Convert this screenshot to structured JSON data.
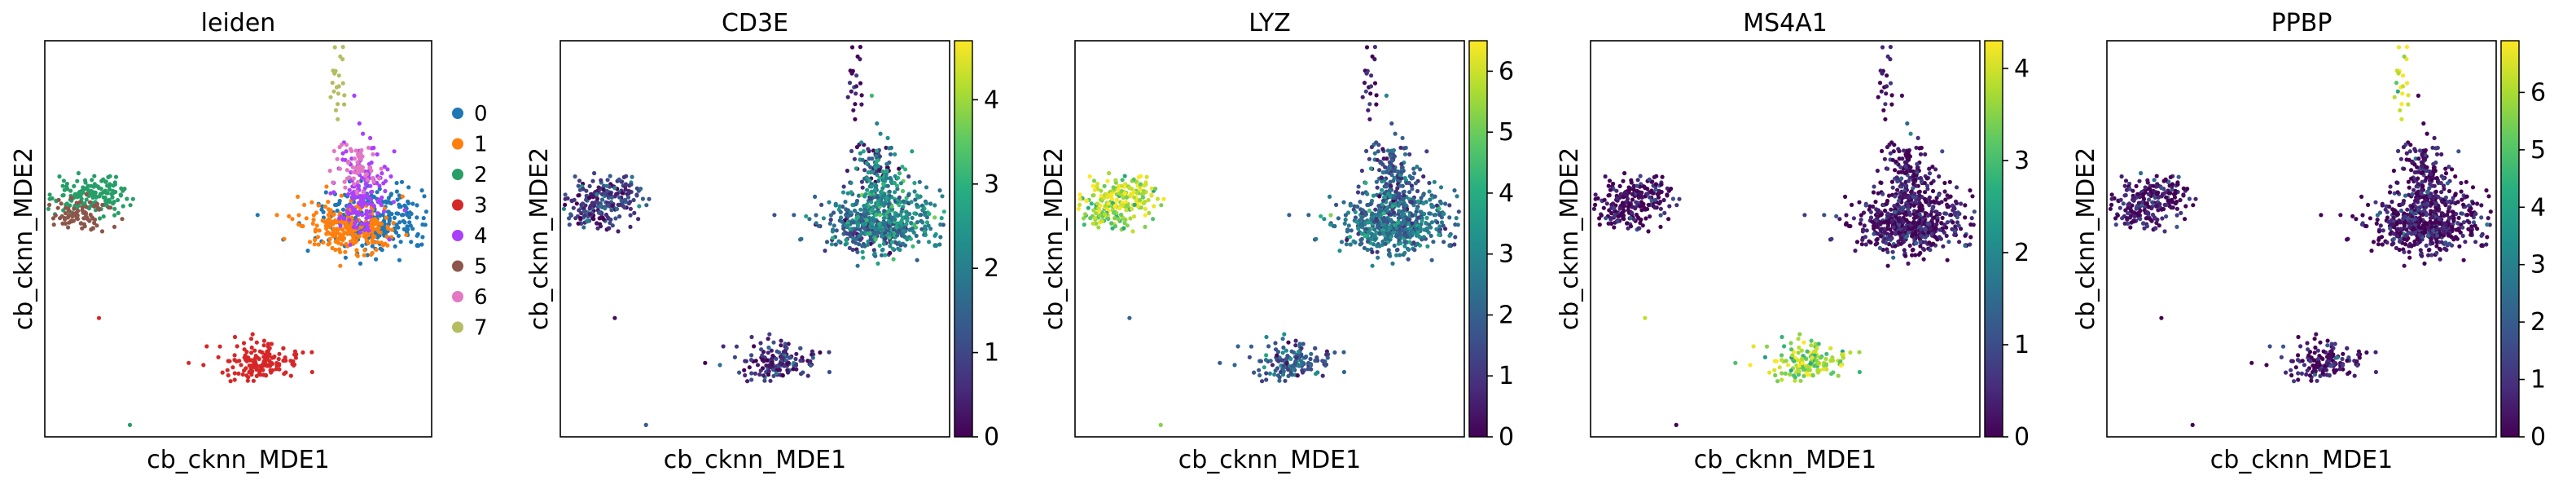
{
  "chart_data": [
    {
      "type": "scatter",
      "title": "leiden",
      "xlabel": "cb_cknn_MDE1",
      "ylabel": "cb_cknn_MDE2",
      "legend": {
        "placement": "right",
        "entries": [
          {
            "label": "0",
            "color": "#1f77b4"
          },
          {
            "label": "1",
            "color": "#ff7f0e"
          },
          {
            "label": "2",
            "color": "#279e68"
          },
          {
            "label": "3",
            "color": "#d62728"
          },
          {
            "label": "4",
            "color": "#aa40fc"
          },
          {
            "label": "5",
            "color": "#8c564b"
          },
          {
            "label": "6",
            "color": "#e377c2"
          },
          {
            "label": "7",
            "color": "#b5bd61"
          }
        ]
      }
    },
    {
      "type": "scatter",
      "title": "CD3E",
      "xlabel": "cb_cknn_MDE1",
      "ylabel": "cb_cknn_MDE2",
      "colorbar": {
        "ticks": [
          "0",
          "1",
          "2",
          "3",
          "4"
        ],
        "range": [
          0,
          4.7
        ],
        "colormap": "viridis"
      }
    },
    {
      "type": "scatter",
      "title": "LYZ",
      "xlabel": "cb_cknn_MDE1",
      "ylabel": "cb_cknn_MDE2",
      "colorbar": {
        "ticks": [
          "0",
          "1",
          "2",
          "3",
          "4",
          "5",
          "6"
        ],
        "range": [
          0,
          6.5
        ],
        "colormap": "viridis"
      }
    },
    {
      "type": "scatter",
      "title": "MS4A1",
      "xlabel": "cb_cknn_MDE1",
      "ylabel": "cb_cknn_MDE2",
      "colorbar": {
        "ticks": [
          "0",
          "1",
          "2",
          "3",
          "4"
        ],
        "range": [
          0,
          4.3
        ],
        "colormap": "viridis"
      }
    },
    {
      "type": "scatter",
      "title": "PPBP",
      "xlabel": "cb_cknn_MDE1",
      "ylabel": "cb_cknn_MDE2",
      "colorbar": {
        "ticks": [
          "0",
          "1",
          "2",
          "3",
          "4",
          "5",
          "6"
        ],
        "range": [
          0,
          6.9
        ],
        "colormap": "viridis"
      }
    }
  ]
}
